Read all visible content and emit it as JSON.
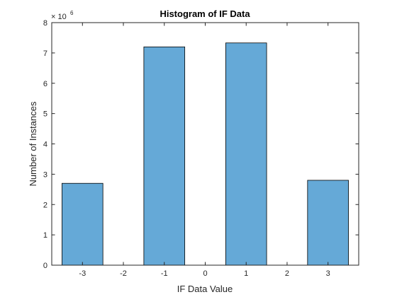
{
  "chart_data": {
    "type": "bar",
    "title": "Histogram of IF Data",
    "xlabel": "IF Data Value",
    "ylabel": "Number of Instances",
    "y_multiplier_label": "× 10",
    "y_multiplier_exponent": "6",
    "categories": [
      "-3",
      "-1",
      "1",
      "3"
    ],
    "x": [
      -3,
      -1,
      1,
      3
    ],
    "values": [
      2.7,
      7.2,
      7.33,
      2.8
    ],
    "value_scale": 1000000,
    "bin_width": 1,
    "xlim": [
      -3.75,
      3.75
    ],
    "ylim": [
      0,
      8
    ],
    "xticks": [
      -3,
      -2,
      -1,
      0,
      1,
      2,
      3
    ],
    "xtick_labels": [
      "-3",
      "-2",
      "-1",
      "0",
      "1",
      "2",
      "3"
    ],
    "yticks": [
      0,
      1,
      2,
      3,
      4,
      5,
      6,
      7,
      8
    ],
    "ytick_labels": [
      "0",
      "1",
      "2",
      "3",
      "4",
      "5",
      "6",
      "7",
      "8"
    ],
    "grid": false,
    "bar_color": "#65a9d7",
    "edge_color": "#000000"
  }
}
